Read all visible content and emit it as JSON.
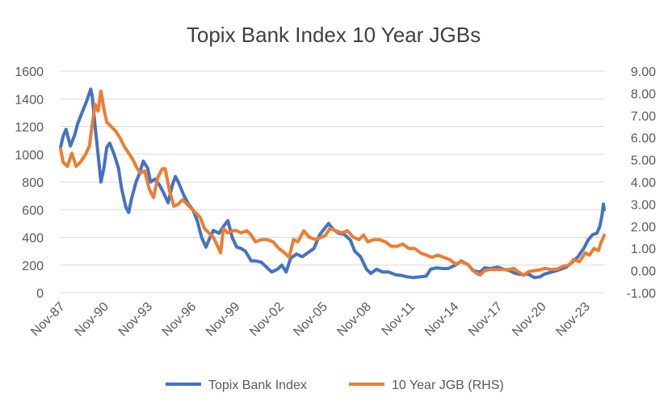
{
  "chart_data": {
    "type": "line",
    "title": "Topix Bank Index 10 Year JGBs",
    "x_tick_labels": [
      "Nov-87",
      "Nov-90",
      "Nov-93",
      "Nov-96",
      "Nov-99",
      "Nov-02",
      "Nov-05",
      "Nov-08",
      "Nov-11",
      "Nov-14",
      "Nov-17",
      "Nov-20",
      "Nov-23"
    ],
    "x_start_year": 1987.83,
    "x_end_year": 2025.1,
    "y_left": {
      "min": 0,
      "max": 1600,
      "step": 200,
      "tick_labels": [
        "0",
        "200",
        "400",
        "600",
        "800",
        "1000",
        "1200",
        "1400",
        "1600"
      ]
    },
    "y_right": {
      "min": -1,
      "max": 9,
      "step": 1,
      "tick_labels": [
        "-1.00",
        "0.00",
        "1.00",
        "2.00",
        "3.00",
        "4.00",
        "5.00",
        "6.00",
        "7.00",
        "8.00",
        "9.00"
      ]
    },
    "legend_position": "bottom",
    "series": [
      {
        "name": "Topix Bank Index",
        "axis": "left",
        "color": "#4472C4",
        "points": [
          [
            1987.83,
            1050
          ],
          [
            1988.0,
            1130
          ],
          [
            1988.2,
            1180
          ],
          [
            1988.5,
            1060
          ],
          [
            1988.8,
            1140
          ],
          [
            1989.0,
            1220
          ],
          [
            1989.3,
            1300
          ],
          [
            1989.6,
            1380
          ],
          [
            1989.9,
            1470
          ],
          [
            1990.0,
            1420
          ],
          [
            1990.2,
            1200
          ],
          [
            1990.4,
            1000
          ],
          [
            1990.6,
            800
          ],
          [
            1990.8,
            900
          ],
          [
            1991.0,
            1050
          ],
          [
            1991.2,
            1080
          ],
          [
            1991.5,
            1000
          ],
          [
            1991.8,
            900
          ],
          [
            1992.0,
            760
          ],
          [
            1992.3,
            620
          ],
          [
            1992.5,
            580
          ],
          [
            1992.7,
            680
          ],
          [
            1993.0,
            800
          ],
          [
            1993.2,
            850
          ],
          [
            1993.5,
            950
          ],
          [
            1993.8,
            900
          ],
          [
            1994.0,
            800
          ],
          [
            1994.3,
            820
          ],
          [
            1994.6,
            780
          ],
          [
            1994.9,
            720
          ],
          [
            1995.2,
            650
          ],
          [
            1995.5,
            780
          ],
          [
            1995.7,
            840
          ],
          [
            1995.9,
            800
          ],
          [
            1996.3,
            700
          ],
          [
            1996.6,
            640
          ],
          [
            1996.9,
            600
          ],
          [
            1997.2,
            520
          ],
          [
            1997.5,
            400
          ],
          [
            1997.8,
            330
          ],
          [
            1998.0,
            380
          ],
          [
            1998.3,
            450
          ],
          [
            1998.7,
            430
          ],
          [
            1999.0,
            480
          ],
          [
            1999.3,
            520
          ],
          [
            1999.6,
            400
          ],
          [
            1999.9,
            330
          ],
          [
            2000.2,
            320
          ],
          [
            2000.5,
            300
          ],
          [
            2000.9,
            230
          ],
          [
            2001.2,
            230
          ],
          [
            2001.6,
            220
          ],
          [
            2002.0,
            180
          ],
          [
            2002.3,
            150
          ],
          [
            2002.7,
            170
          ],
          [
            2003.0,
            200
          ],
          [
            2003.3,
            150
          ],
          [
            2003.6,
            250
          ],
          [
            2004.0,
            280
          ],
          [
            2004.4,
            260
          ],
          [
            2004.8,
            290
          ],
          [
            2005.2,
            320
          ],
          [
            2005.6,
            420
          ],
          [
            2005.9,
            460
          ],
          [
            2006.2,
            500
          ],
          [
            2006.5,
            460
          ],
          [
            2006.9,
            430
          ],
          [
            2007.3,
            420
          ],
          [
            2007.7,
            380
          ],
          [
            2008.0,
            300
          ],
          [
            2008.4,
            260
          ],
          [
            2008.8,
            170
          ],
          [
            2009.1,
            140
          ],
          [
            2009.5,
            170
          ],
          [
            2009.9,
            150
          ],
          [
            2010.3,
            150
          ],
          [
            2010.8,
            130
          ],
          [
            2011.2,
            125
          ],
          [
            2011.6,
            115
          ],
          [
            2012.0,
            110
          ],
          [
            2012.5,
            115
          ],
          [
            2012.9,
            120
          ],
          [
            2013.2,
            170
          ],
          [
            2013.6,
            180
          ],
          [
            2014.0,
            175
          ],
          [
            2014.4,
            175
          ],
          [
            2014.9,
            200
          ],
          [
            2015.3,
            230
          ],
          [
            2015.8,
            200
          ],
          [
            2016.1,
            160
          ],
          [
            2016.6,
            150
          ],
          [
            2016.9,
            180
          ],
          [
            2017.3,
            175
          ],
          [
            2017.8,
            185
          ],
          [
            2018.2,
            170
          ],
          [
            2018.6,
            160
          ],
          [
            2019.0,
            140
          ],
          [
            2019.5,
            130
          ],
          [
            2019.9,
            135
          ],
          [
            2020.3,
            110
          ],
          [
            2020.7,
            115
          ],
          [
            2021.0,
            135
          ],
          [
            2021.5,
            150
          ],
          [
            2022.0,
            165
          ],
          [
            2022.5,
            185
          ],
          [
            2022.9,
            220
          ],
          [
            2023.3,
            260
          ],
          [
            2023.7,
            320
          ],
          [
            2024.0,
            380
          ],
          [
            2024.3,
            420
          ],
          [
            2024.6,
            430
          ],
          [
            2024.8,
            480
          ],
          [
            2024.95,
            560
          ],
          [
            2025.05,
            640
          ],
          [
            2025.1,
            600
          ]
        ]
      },
      {
        "name": "10 Year JGB (RHS)",
        "axis": "right",
        "color": "#ED7D31",
        "points": [
          [
            1987.83,
            5.5
          ],
          [
            1988.0,
            4.9
          ],
          [
            1988.3,
            4.7
          ],
          [
            1988.6,
            5.3
          ],
          [
            1988.9,
            4.7
          ],
          [
            1989.2,
            4.9
          ],
          [
            1989.5,
            5.2
          ],
          [
            1989.8,
            5.6
          ],
          [
            1990.0,
            6.6
          ],
          [
            1990.2,
            7.5
          ],
          [
            1990.4,
            7.2
          ],
          [
            1990.6,
            8.1
          ],
          [
            1990.8,
            7.3
          ],
          [
            1991.0,
            6.7
          ],
          [
            1991.3,
            6.5
          ],
          [
            1991.6,
            6.3
          ],
          [
            1991.9,
            6.0
          ],
          [
            1992.2,
            5.6
          ],
          [
            1992.5,
            5.3
          ],
          [
            1992.8,
            5.0
          ],
          [
            1993.0,
            4.7
          ],
          [
            1993.3,
            4.4
          ],
          [
            1993.6,
            4.5
          ],
          [
            1993.9,
            3.7
          ],
          [
            1994.2,
            3.3
          ],
          [
            1994.5,
            4.2
          ],
          [
            1994.8,
            4.6
          ],
          [
            1995.0,
            4.6
          ],
          [
            1995.3,
            3.6
          ],
          [
            1995.6,
            2.9
          ],
          [
            1995.9,
            3.0
          ],
          [
            1996.2,
            3.2
          ],
          [
            1996.5,
            3.0
          ],
          [
            1996.8,
            2.8
          ],
          [
            1997.1,
            2.6
          ],
          [
            1997.4,
            2.4
          ],
          [
            1997.7,
            1.9
          ],
          [
            1998.0,
            1.7
          ],
          [
            1998.3,
            1.5
          ],
          [
            1998.6,
            1.1
          ],
          [
            1998.8,
            0.8
          ],
          [
            1999.0,
            1.9
          ],
          [
            1999.3,
            1.7
          ],
          [
            1999.6,
            1.8
          ],
          [
            1999.9,
            1.8
          ],
          [
            2000.2,
            1.7
          ],
          [
            2000.6,
            1.8
          ],
          [
            2000.9,
            1.6
          ],
          [
            2001.2,
            1.3
          ],
          [
            2001.6,
            1.4
          ],
          [
            2002.0,
            1.4
          ],
          [
            2002.4,
            1.3
          ],
          [
            2002.8,
            1.0
          ],
          [
            2003.2,
            0.8
          ],
          [
            2003.5,
            0.6
          ],
          [
            2003.8,
            1.4
          ],
          [
            2004.1,
            1.3
          ],
          [
            2004.5,
            1.8
          ],
          [
            2004.9,
            1.5
          ],
          [
            2005.3,
            1.4
          ],
          [
            2005.7,
            1.5
          ],
          [
            2006.0,
            1.6
          ],
          [
            2006.3,
            1.9
          ],
          [
            2006.7,
            1.8
          ],
          [
            2007.1,
            1.7
          ],
          [
            2007.5,
            1.8
          ],
          [
            2007.9,
            1.5
          ],
          [
            2008.3,
            1.4
          ],
          [
            2008.6,
            1.6
          ],
          [
            2008.9,
            1.3
          ],
          [
            2009.3,
            1.4
          ],
          [
            2009.7,
            1.4
          ],
          [
            2010.1,
            1.3
          ],
          [
            2010.5,
            1.1
          ],
          [
            2010.9,
            1.1
          ],
          [
            2011.3,
            1.2
          ],
          [
            2011.7,
            1.0
          ],
          [
            2012.1,
            1.0
          ],
          [
            2012.5,
            0.8
          ],
          [
            2012.9,
            0.7
          ],
          [
            2013.3,
            0.6
          ],
          [
            2013.7,
            0.7
          ],
          [
            2014.1,
            0.6
          ],
          [
            2014.5,
            0.5
          ],
          [
            2014.9,
            0.3
          ],
          [
            2015.3,
            0.4
          ],
          [
            2015.7,
            0.3
          ],
          [
            2016.0,
            0.1
          ],
          [
            2016.3,
            -0.1
          ],
          [
            2016.6,
            -0.2
          ],
          [
            2016.9,
            0.0
          ],
          [
            2017.3,
            0.05
          ],
          [
            2017.7,
            0.05
          ],
          [
            2018.1,
            0.05
          ],
          [
            2018.5,
            0.04
          ],
          [
            2018.9,
            0.1
          ],
          [
            2019.2,
            -0.05
          ],
          [
            2019.6,
            -0.2
          ],
          [
            2019.9,
            -0.05
          ],
          [
            2020.3,
            0.0
          ],
          [
            2020.7,
            0.03
          ],
          [
            2021.0,
            0.1
          ],
          [
            2021.5,
            0.05
          ],
          [
            2021.9,
            0.07
          ],
          [
            2022.3,
            0.2
          ],
          [
            2022.7,
            0.25
          ],
          [
            2023.0,
            0.5
          ],
          [
            2023.4,
            0.4
          ],
          [
            2023.8,
            0.8
          ],
          [
            2024.1,
            0.7
          ],
          [
            2024.4,
            1.0
          ],
          [
            2024.7,
            0.9
          ],
          [
            2024.9,
            1.3
          ],
          [
            2025.05,
            1.5
          ],
          [
            2025.1,
            1.6
          ]
        ]
      }
    ]
  }
}
